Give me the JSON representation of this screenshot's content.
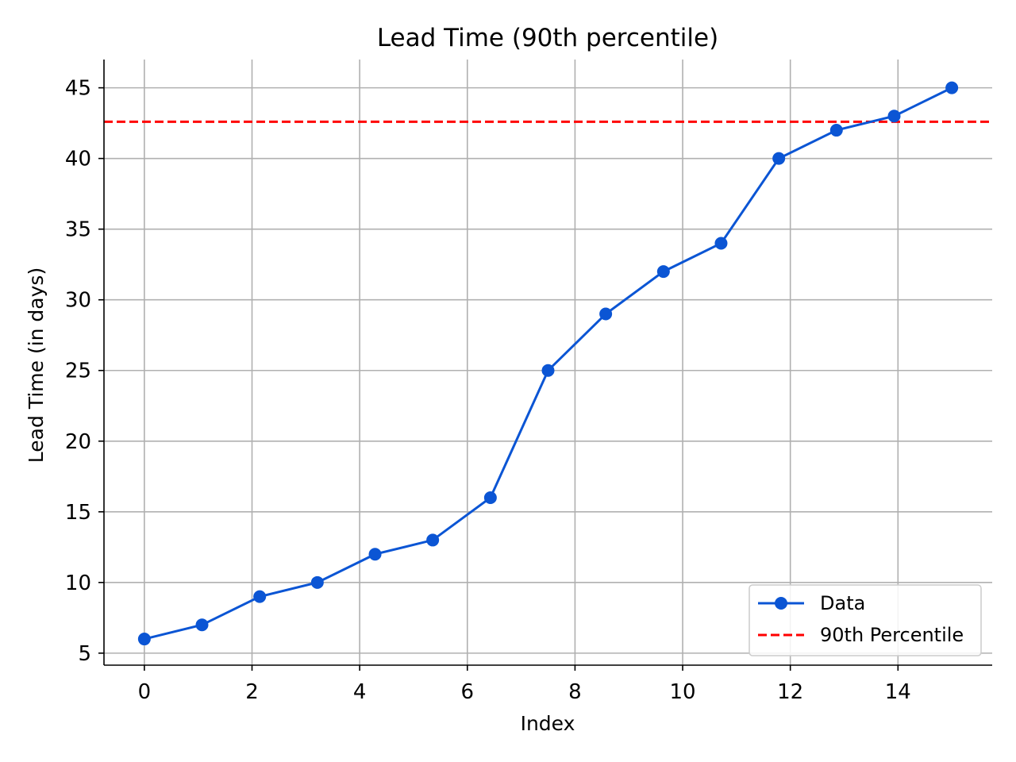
{
  "chart_data": {
    "type": "line",
    "title": "Lead Time (90th percentile)",
    "xlabel": "Index",
    "ylabel": "Lead Time (in days)",
    "xlim": [
      -0.75,
      15.75
    ],
    "ylim": [
      4.15,
      47.0
    ],
    "xticks": [
      0,
      2,
      4,
      6,
      8,
      10,
      12,
      14
    ],
    "yticks": [
      5,
      10,
      15,
      20,
      25,
      30,
      35,
      40,
      45
    ],
    "grid": true,
    "legend_placement": "lower-right",
    "series": [
      {
        "name": "Data",
        "color": "#0b55d4",
        "marker": "circle",
        "x": [
          0,
          1.071,
          2.143,
          3.214,
          4.286,
          5.357,
          6.429,
          7.5,
          8.571,
          9.643,
          10.714,
          11.786,
          12.857,
          13.929,
          15
        ],
        "y": [
          6,
          7,
          9,
          10,
          12,
          13,
          16,
          25,
          29,
          32,
          34,
          40,
          42,
          43,
          45
        ]
      }
    ],
    "hlines": [
      {
        "name": "90th Percentile",
        "y": 42.6,
        "color": "#ff0000",
        "style": "dashed"
      }
    ]
  }
}
